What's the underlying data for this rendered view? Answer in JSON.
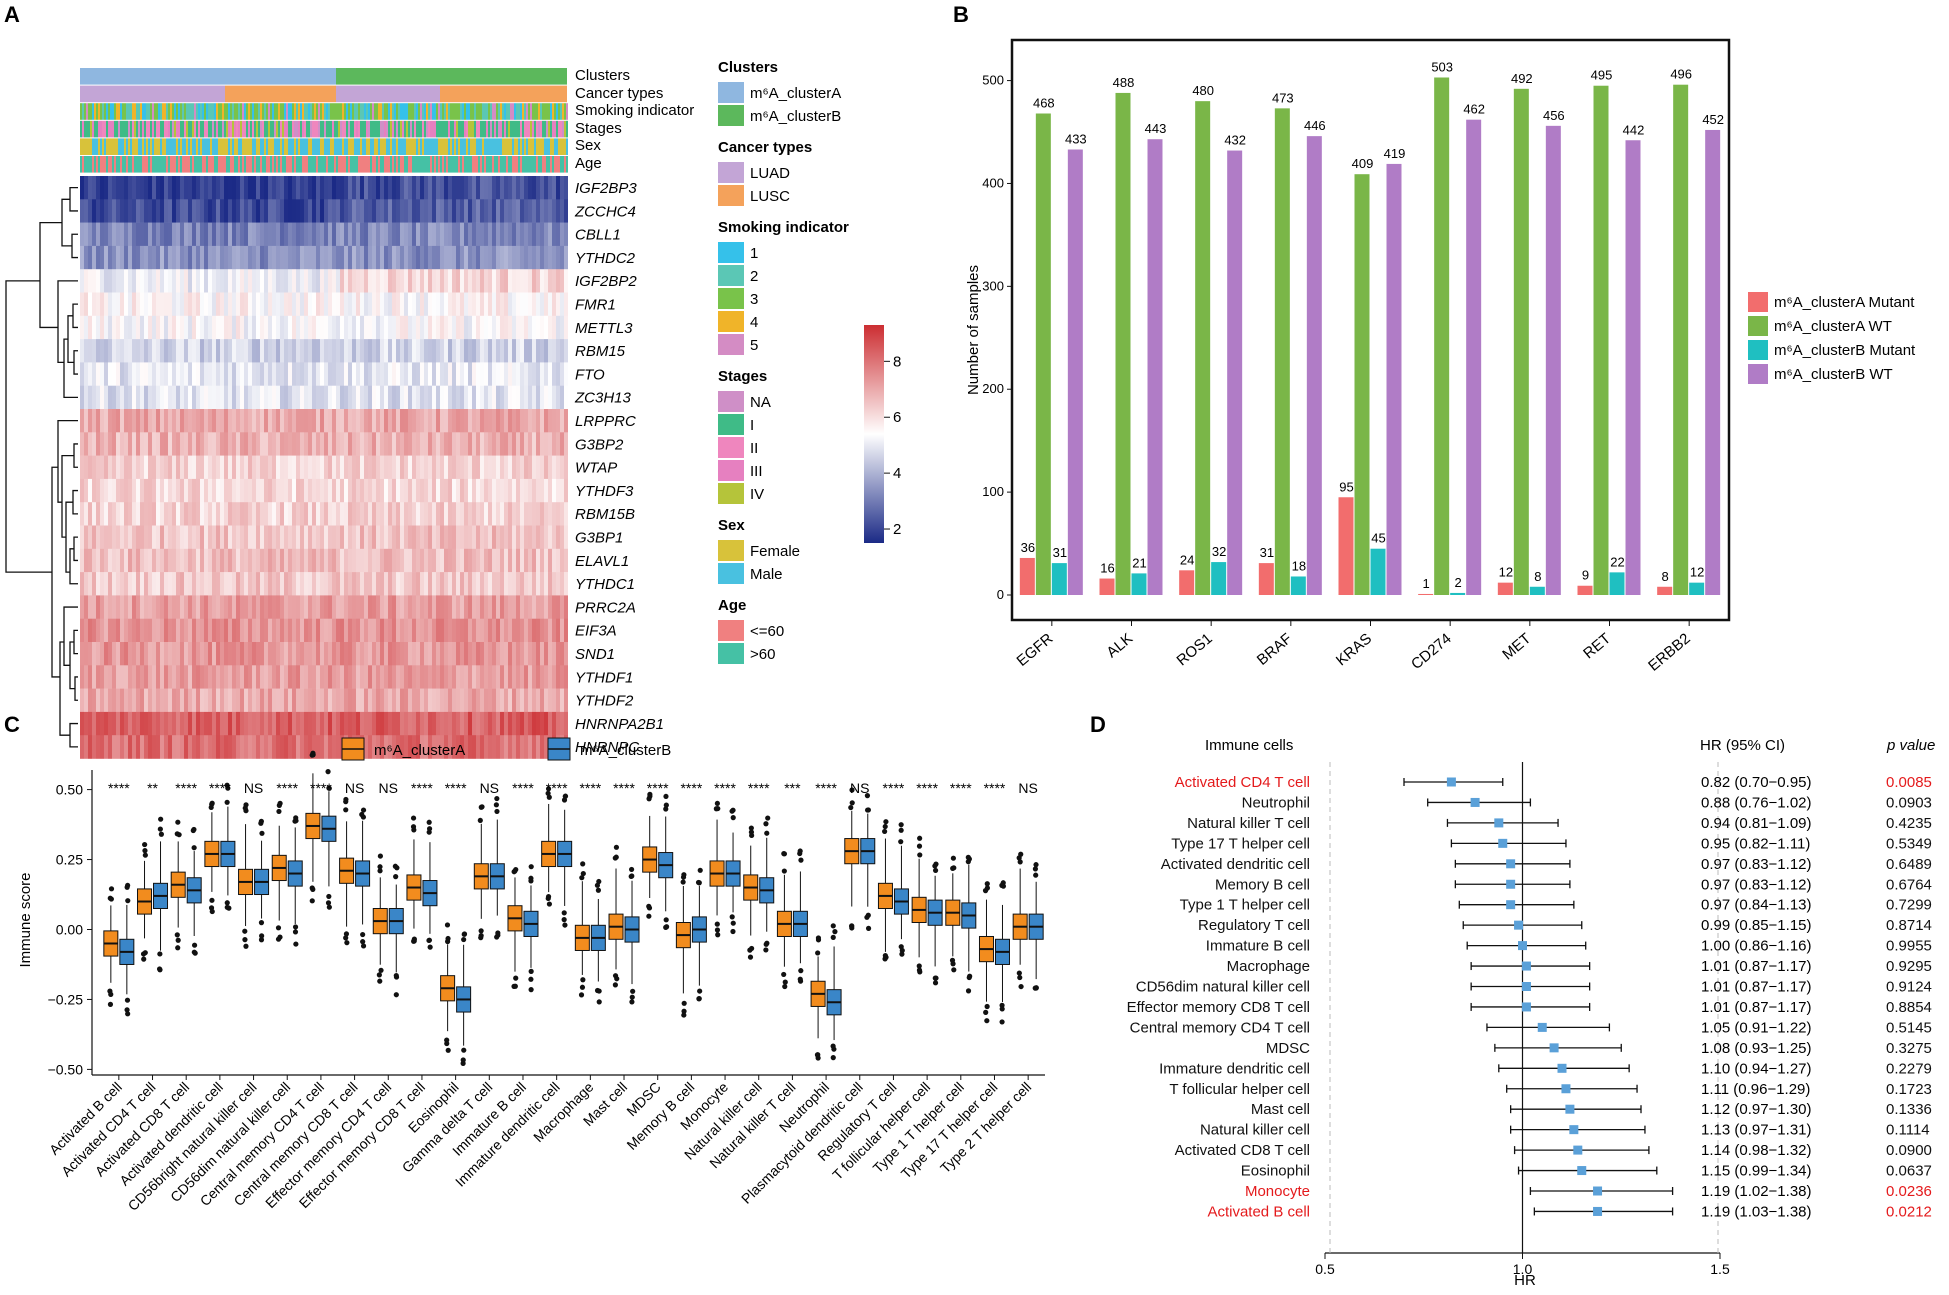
{
  "panels": {
    "a": "A",
    "b": "B",
    "c": "C",
    "d": "D"
  },
  "panel_a": {
    "track_labels": [
      "Clusters",
      "Cancer types",
      "Smoking indicator",
      "Stages",
      "Sex",
      "Age"
    ],
    "genes": [
      "IGF2BP3",
      "ZCCHC4",
      "CBLL1",
      "YTHDC2",
      "IGF2BP2",
      "FMR1",
      "METTL3",
      "RBM15",
      "FTO",
      "ZC3H13",
      "LRPPRC",
      "G3BP2",
      "WTAP",
      "YTHDF3",
      "RBM15B",
      "G3BP1",
      "ELAVL1",
      "YTHDC1",
      "PRRC2A",
      "EIF3A",
      "SND1",
      "YTHDF1",
      "YTHDF2",
      "HNRNPA2B1",
      "HNRNPC"
    ],
    "gene_levels": [
      2.2,
      2.5,
      3.2,
      3.4,
      5.2,
      5.5,
      5.4,
      4.6,
      5.0,
      4.9,
      7.0,
      6.8,
      6.2,
      6.1,
      6.2,
      6.5,
      6.6,
      6.4,
      7.2,
      7.4,
      7.3,
      7.2,
      7.0,
      8.4,
      8.1
    ],
    "colorbar": {
      "ticks": [
        "8",
        "6",
        "4",
        "2"
      ],
      "values": [
        8,
        6,
        4,
        2
      ],
      "min": 1.5,
      "max": 9.3,
      "colors": [
        "#1b2a86",
        "#ffffff",
        "#cc2e32"
      ]
    },
    "legend": [
      {
        "title": "Clusters",
        "items": [
          {
            "label": "m6A_clusterA",
            "color": "#8fb7e0"
          },
          {
            "label": "m6A_clusterB",
            "color": "#5cb85c"
          }
        ]
      },
      {
        "title": "Cancer types",
        "items": [
          {
            "label": "LUAD",
            "color": "#c3a5d6"
          },
          {
            "label": "LUSC",
            "color": "#f4a25b"
          }
        ]
      },
      {
        "title": "Smoking indicator",
        "items": [
          {
            "label": "1",
            "color": "#35c1ea"
          },
          {
            "label": "2",
            "color": "#5bc7b5"
          },
          {
            "label": "3",
            "color": "#79c34a"
          },
          {
            "label": "4",
            "color": "#f0b429"
          },
          {
            "label": "5",
            "color": "#d48cc4"
          }
        ]
      },
      {
        "title": "Stages",
        "items": [
          {
            "label": "NA",
            "color": "#cf8fc7"
          },
          {
            "label": "I",
            "color": "#3fbb87"
          },
          {
            "label": "II",
            "color": "#ef86be"
          },
          {
            "label": "III",
            "color": "#e680c0"
          },
          {
            "label": "IV",
            "color": "#b5c43a"
          }
        ]
      },
      {
        "title": "Sex",
        "items": [
          {
            "label": "Female",
            "color": "#d8c23a"
          },
          {
            "label": "Male",
            "color": "#49c1e0"
          }
        ]
      },
      {
        "title": "Age",
        "items": [
          {
            "label": "<=60",
            "color": "#f08080"
          },
          {
            "label": ">60",
            "color": "#45c1a5"
          }
        ]
      }
    ]
  },
  "chart_data": [
    {
      "type": "bar",
      "panel": "B",
      "ylabel": "Number of samples",
      "ylim": [
        0,
        520
      ],
      "yticks": [
        "0",
        "100",
        "200",
        "300",
        "400",
        "500"
      ],
      "categories": [
        "EGFR",
        "ALK",
        "ROS1",
        "BRAF",
        "KRAS",
        "CD274",
        "MET",
        "RET",
        "ERBB2"
      ],
      "series": [
        {
          "name": "m6A_clusterA Mutant",
          "color": "#f26d6d",
          "values": [
            36,
            16,
            24,
            31,
            95,
            1,
            12,
            9,
            8
          ],
          "labels": [
            "36",
            "16",
            "24",
            "31",
            "95",
            "1",
            "12",
            "9",
            "8"
          ]
        },
        {
          "name": "m6A_clusterA WT",
          "color": "#7ab648",
          "values": [
            468,
            488,
            480,
            473,
            409,
            503,
            492,
            495,
            496
          ],
          "labels": [
            "468",
            "488",
            "480",
            "473",
            "409",
            "503",
            "492",
            "495",
            "496"
          ]
        },
        {
          "name": "m6A_clusterB Mutant",
          "color": "#1fbfc1",
          "values": [
            31,
            21,
            32,
            18,
            45,
            2,
            8,
            22,
            12
          ],
          "labels": [
            "31",
            "21",
            "32",
            "18",
            "45",
            "2",
            "8",
            "22",
            "12"
          ]
        },
        {
          "name": "m6A_clusterB WT",
          "color": "#b07cc6",
          "values": [
            433,
            443,
            432,
            446,
            419,
            462,
            456,
            442,
            452
          ],
          "labels": [
            "433",
            "443",
            "432",
            "446",
            "419",
            "462",
            "456",
            "442",
            "452"
          ]
        }
      ],
      "legend_labels": [
        "m⁶A_clusterA Mutant",
        "m⁶A_clusterA WT",
        "m⁶A_clusterB Mutant",
        "m⁶A_clusterB WT"
      ],
      "legend": "right"
    },
    {
      "type": "box",
      "panel": "C",
      "ylabel": "Immune score",
      "ylim": [
        -0.52,
        0.57
      ],
      "yticks": [
        "0.50",
        "0.25",
        "0.00",
        "−0.25",
        "−0.50"
      ],
      "ytick_values": [
        0.5,
        0.25,
        0.0,
        -0.25,
        -0.5
      ],
      "legend_labels": [
        "m⁶A_clusterA",
        "m⁶A_clusterB"
      ],
      "legend": "top",
      "series": [
        {
          "name": "m6A_clusterA",
          "color": "#f28c1e"
        },
        {
          "name": "m6A_clusterB",
          "color": "#3a86c8"
        }
      ],
      "categories": [
        "Activated B cell",
        "Activated CD4 T cell",
        "Activated CD8 T cell",
        "Activated dendritic cell",
        "CD56bright natural killer cell",
        "CD56dim natural killer cell",
        "Central memory CD4 T cell",
        "Central memory CD8 T cell",
        "Effector memory CD4 T cell",
        "Effector memory CD8 T cell",
        "Eosinophil",
        "Gamma delta T cell",
        "Immature B cell",
        "Immature dendritic cell",
        "Macrophage",
        "Mast cell",
        "MDSC",
        "Memory B cell",
        "Monocyte",
        "Natural killer cell",
        "Natural killer T cell",
        "Neutrophil",
        "Plasmacytoid dendritic cell",
        "Regulatory T cell",
        "T follicular helper cell",
        "Type 1 T helper cell",
        "Type 17 T helper cell",
        "Type 2 T helper cell"
      ],
      "significance": [
        "****",
        "**",
        "****",
        "****",
        "NS",
        "****",
        "****",
        "NS",
        "NS",
        "****",
        "****",
        "NS",
        "****",
        "****",
        "****",
        "****",
        "****",
        "****",
        "****",
        "****",
        "***",
        "****",
        "NS",
        "****",
        "****",
        "****",
        "****",
        "NS"
      ],
      "medians_a": [
        -0.05,
        0.1,
        0.16,
        0.27,
        0.17,
        0.22,
        0.37,
        0.21,
        0.03,
        0.15,
        -0.21,
        0.19,
        0.04,
        0.27,
        -0.03,
        0.01,
        0.25,
        -0.02,
        0.2,
        0.15,
        0.02,
        -0.23,
        0.28,
        0.12,
        0.07,
        0.06,
        -0.07,
        0.01
      ],
      "medians_b": [
        -0.08,
        0.12,
        0.14,
        0.27,
        0.17,
        0.2,
        0.36,
        0.2,
        0.03,
        0.13,
        -0.25,
        0.19,
        0.02,
        0.27,
        -0.03,
        0.0,
        0.23,
        0.0,
        0.2,
        0.14,
        0.02,
        -0.26,
        0.28,
        0.1,
        0.06,
        0.05,
        -0.08,
        0.01
      ]
    },
    {
      "type": "forest",
      "panel": "D",
      "header": {
        "cells": "Immune cells",
        "hr": "HR (95% CI)",
        "p": "p value"
      },
      "xlabel": "HR",
      "xlim": [
        0.5,
        1.5
      ],
      "xticks": [
        "0.5",
        "1.0",
        "1.5"
      ],
      "rows": [
        {
          "cell": "Activated CD4 T cell",
          "hr": 0.82,
          "lo": 0.7,
          "hi": 0.95,
          "hr_text": "0.82 (0.70−0.95)",
          "p": "0.0085",
          "sig": true
        },
        {
          "cell": "Neutrophil",
          "hr": 0.88,
          "lo": 0.76,
          "hi": 1.02,
          "hr_text": "0.88 (0.76−1.02)",
          "p": "0.0903",
          "sig": false
        },
        {
          "cell": "Natural killer T cell",
          "hr": 0.94,
          "lo": 0.81,
          "hi": 1.09,
          "hr_text": "0.94 (0.81−1.09)",
          "p": "0.4235",
          "sig": false
        },
        {
          "cell": "Type 17 T helper cell",
          "hr": 0.95,
          "lo": 0.82,
          "hi": 1.11,
          "hr_text": "0.95 (0.82−1.11)",
          "p": "0.5349",
          "sig": false
        },
        {
          "cell": "Activated dendritic cell",
          "hr": 0.97,
          "lo": 0.83,
          "hi": 1.12,
          "hr_text": "0.97 (0.83−1.12)",
          "p": "0.6489",
          "sig": false
        },
        {
          "cell": "Memory B cell",
          "hr": 0.97,
          "lo": 0.83,
          "hi": 1.12,
          "hr_text": "0.97 (0.83−1.12)",
          "p": "0.6764",
          "sig": false
        },
        {
          "cell": "Type 1 T helper cell",
          "hr": 0.97,
          "lo": 0.84,
          "hi": 1.13,
          "hr_text": "0.97 (0.84−1.13)",
          "p": "0.7299",
          "sig": false
        },
        {
          "cell": "Regulatory T cell",
          "hr": 0.99,
          "lo": 0.85,
          "hi": 1.15,
          "hr_text": "0.99 (0.85−1.15)",
          "p": "0.8714",
          "sig": false
        },
        {
          "cell": "Immature  B cell",
          "hr": 1.0,
          "lo": 0.86,
          "hi": 1.16,
          "hr_text": "1.00 (0.86−1.16)",
          "p": "0.9955",
          "sig": false
        },
        {
          "cell": "Macrophage",
          "hr": 1.01,
          "lo": 0.87,
          "hi": 1.17,
          "hr_text": "1.01 (0.87−1.17)",
          "p": "0.9295",
          "sig": false
        },
        {
          "cell": "CD56dim natural killer cell",
          "hr": 1.01,
          "lo": 0.87,
          "hi": 1.17,
          "hr_text": "1.01 (0.87−1.17)",
          "p": "0.9124",
          "sig": false
        },
        {
          "cell": "Effector memory CD8 T cell",
          "hr": 1.01,
          "lo": 0.87,
          "hi": 1.17,
          "hr_text": "1.01 (0.87−1.17)",
          "p": "0.8854",
          "sig": false
        },
        {
          "cell": "Central memory CD4 T cell",
          "hr": 1.05,
          "lo": 0.91,
          "hi": 1.22,
          "hr_text": "1.05 (0.91−1.22)",
          "p": "0.5145",
          "sig": false
        },
        {
          "cell": "MDSC",
          "hr": 1.08,
          "lo": 0.93,
          "hi": 1.25,
          "hr_text": "1.08 (0.93−1.25)",
          "p": "0.3275",
          "sig": false
        },
        {
          "cell": "Immature dendritic cell",
          "hr": 1.1,
          "lo": 0.94,
          "hi": 1.27,
          "hr_text": "1.10 (0.94−1.27)",
          "p": "0.2279",
          "sig": false
        },
        {
          "cell": "T follicular helper cell",
          "hr": 1.11,
          "lo": 0.96,
          "hi": 1.29,
          "hr_text": "1.11 (0.96−1.29)",
          "p": "0.1723",
          "sig": false
        },
        {
          "cell": "Mast cell",
          "hr": 1.12,
          "lo": 0.97,
          "hi": 1.3,
          "hr_text": "1.12 (0.97−1.30)",
          "p": "0.1336",
          "sig": false
        },
        {
          "cell": "Natural killer cell",
          "hr": 1.13,
          "lo": 0.97,
          "hi": 1.31,
          "hr_text": "1.13 (0.97−1.31)",
          "p": "0.1114",
          "sig": false
        },
        {
          "cell": "Activated CD8 T cell",
          "hr": 1.14,
          "lo": 0.98,
          "hi": 1.32,
          "hr_text": "1.14 (0.98−1.32)",
          "p": "0.0900",
          "sig": false
        },
        {
          "cell": "Eosinophil",
          "hr": 1.15,
          "lo": 0.99,
          "hi": 1.34,
          "hr_text": "1.15 (0.99−1.34)",
          "p": "0.0637",
          "sig": false
        },
        {
          "cell": "Monocyte",
          "hr": 1.19,
          "lo": 1.02,
          "hi": 1.38,
          "hr_text": "1.19 (1.02−1.38)",
          "p": "0.0236",
          "sig": true
        },
        {
          "cell": "Activated B cell",
          "hr": 1.19,
          "lo": 1.03,
          "hi": 1.38,
          "hr_text": "1.19 (1.03−1.38)",
          "p": "0.0212",
          "sig": true
        }
      ]
    }
  ],
  "colors": {
    "axis": "#111111",
    "sig_text": "#e41a1c",
    "forest_marker": "#5aa0d8",
    "panel_b_border": "#111111"
  }
}
